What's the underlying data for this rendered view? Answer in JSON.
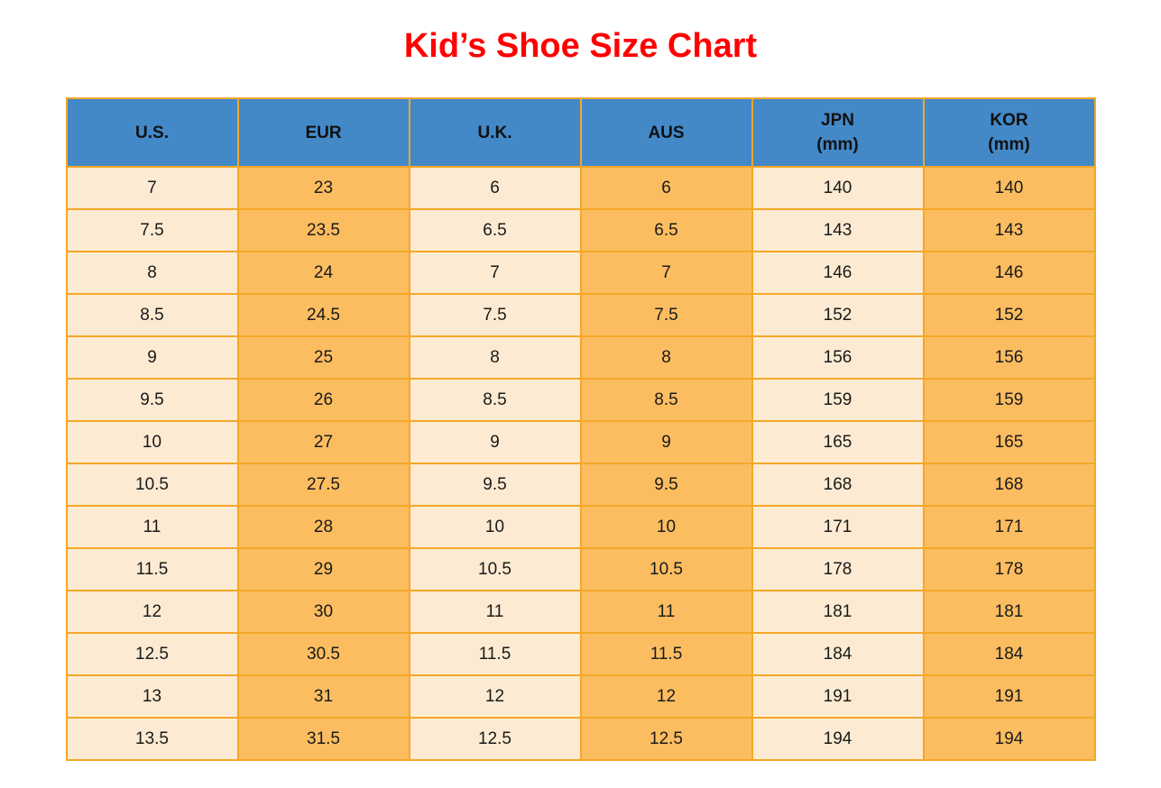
{
  "page": {
    "title": "Kid’s Shoe Size Chart"
  },
  "colors": {
    "title_color": "#FF0000",
    "header_bg": "#4389C8",
    "header_text": "#111111",
    "col_light": "#FCEBD2",
    "col_dark": "#FCBD61",
    "border_color": "#F5A728",
    "cell_text": "#1A1A1A",
    "page_bg": "#FFFFFF"
  },
  "table": {
    "columns": [
      {
        "label": "U.S.",
        "sublabel": ""
      },
      {
        "label": "EUR",
        "sublabel": ""
      },
      {
        "label": "U.K.",
        "sublabel": ""
      },
      {
        "label": "AUS",
        "sublabel": ""
      },
      {
        "label": "JPN",
        "sublabel": "(mm)"
      },
      {
        "label": "KOR",
        "sublabel": "(mm)"
      }
    ]
  },
  "chart_data": {
    "type": "table",
    "title": "Kid’s Shoe Size Chart",
    "columns": [
      "U.S.",
      "EUR",
      "U.K.",
      "AUS",
      "JPN (mm)",
      "KOR (mm)"
    ],
    "rows": [
      [
        "7",
        "23",
        "6",
        "6",
        "140",
        "140"
      ],
      [
        "7.5",
        "23.5",
        "6.5",
        "6.5",
        "143",
        "143"
      ],
      [
        "8",
        "24",
        "7",
        "7",
        "146",
        "146"
      ],
      [
        "8.5",
        "24.5",
        "7.5",
        "7.5",
        "152",
        "152"
      ],
      [
        "9",
        "25",
        "8",
        "8",
        "156",
        "156"
      ],
      [
        "9.5",
        "26",
        "8.5",
        "8.5",
        "159",
        "159"
      ],
      [
        "10",
        "27",
        "9",
        "9",
        "165",
        "165"
      ],
      [
        "10.5",
        "27.5",
        "9.5",
        "9.5",
        "168",
        "168"
      ],
      [
        "11",
        "28",
        "10",
        "10",
        "171",
        "171"
      ],
      [
        "11.5",
        "29",
        "10.5",
        "10.5",
        "178",
        "178"
      ],
      [
        "12",
        "30",
        "11",
        "11",
        "181",
        "181"
      ],
      [
        "12.5",
        "30.5",
        "11.5",
        "11.5",
        "184",
        "184"
      ],
      [
        "13",
        "31",
        "12",
        "12",
        "191",
        "191"
      ],
      [
        "13.5",
        "31.5",
        "12.5",
        "12.5",
        "194",
        "194"
      ]
    ],
    "layout": {
      "column_striping": [
        "light",
        "dark",
        "light",
        "dark",
        "light",
        "dark"
      ],
      "header_style": "blue-band",
      "grid": true
    }
  }
}
